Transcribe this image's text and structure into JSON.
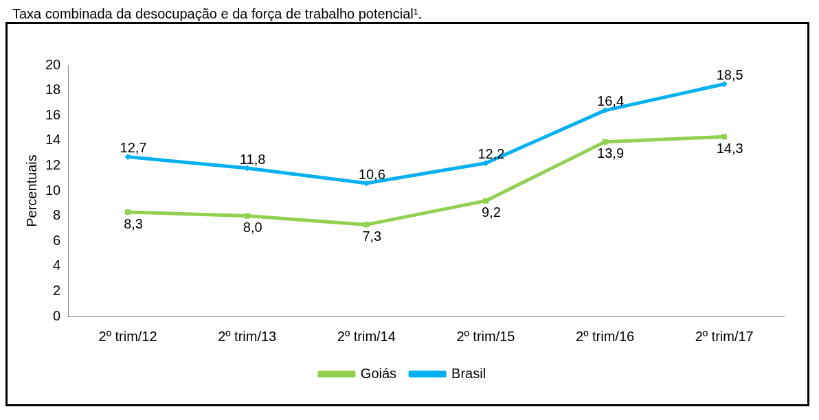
{
  "chart_data": {
    "type": "line",
    "title": "Taxa combinada da desocupação e da força de trabalho potencial¹.",
    "ylabel": "Percentuais",
    "categories": [
      "2º trim/12",
      "2º trim/13",
      "2º trim/14",
      "2º trim/15",
      "2º trim/16",
      "2º trim/17"
    ],
    "series": [
      {
        "name": "Goiás",
        "color": "#92d050",
        "marker": "square",
        "values": [
          8.3,
          8.0,
          7.3,
          9.2,
          13.9,
          14.3
        ],
        "value_labels": [
          "8,3",
          "8,0",
          "7,3",
          "9,2",
          "13,9",
          "14,3"
        ]
      },
      {
        "name": "Brasil",
        "color": "#00b0f0",
        "marker": "diamond",
        "values": [
          12.7,
          11.8,
          10.6,
          12.2,
          16.4,
          18.5
        ],
        "value_labels": [
          "12,7",
          "11,8",
          "10,6",
          "12,2",
          "16,4",
          "18,5"
        ]
      }
    ],
    "ylim": [
      0,
      20
    ],
    "yticks": [
      0,
      2,
      4,
      6,
      8,
      10,
      12,
      14,
      16,
      18,
      20
    ],
    "grid": false,
    "legend": "bottom"
  }
}
